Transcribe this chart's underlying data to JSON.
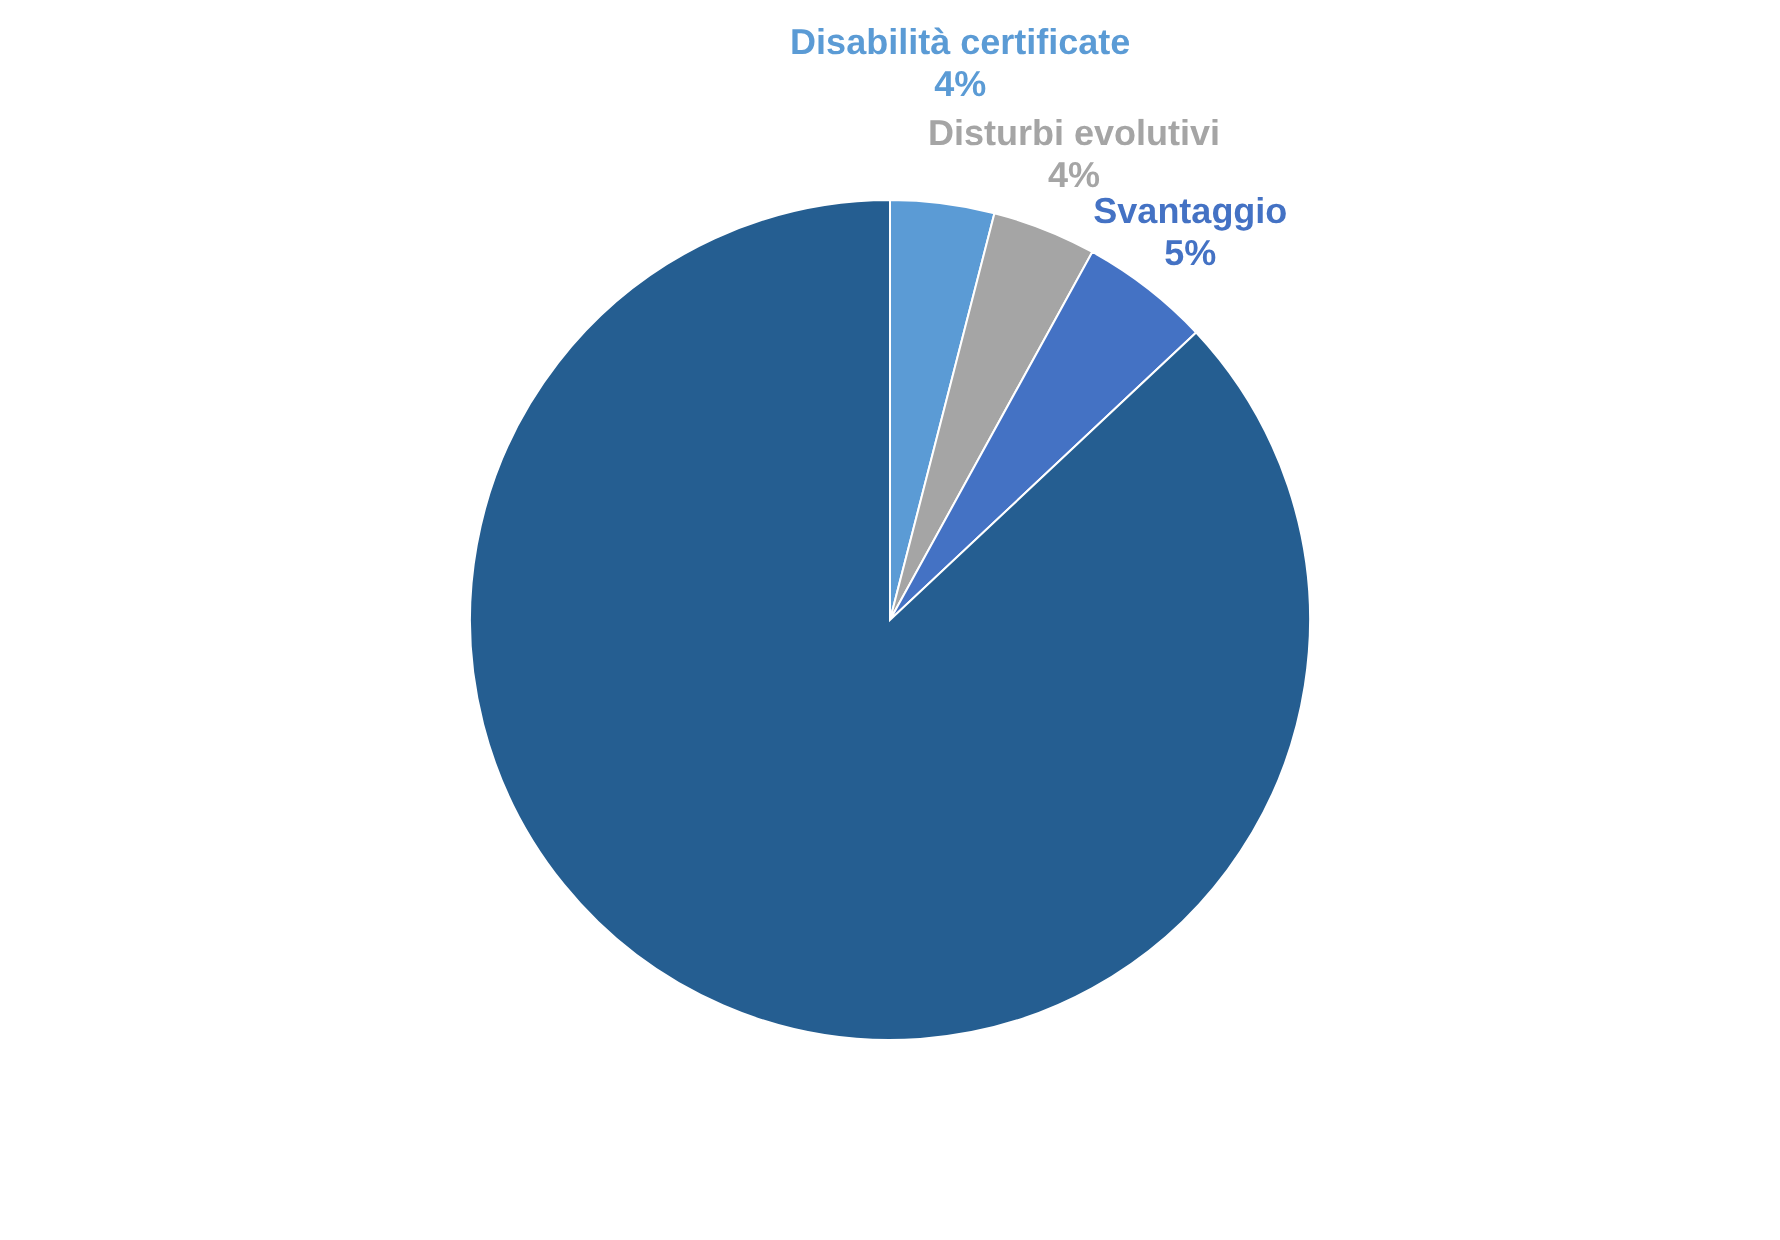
{
  "chart_data": {
    "type": "pie",
    "categories": [
      "Disabilità certificate",
      "Disturbi evolutivi",
      "Svantaggio",
      null
    ],
    "values": [
      4,
      4,
      5,
      87
    ],
    "value_labels": [
      "4%",
      "4%",
      "5%",
      null
    ],
    "colors": [
      "#5b9bd5",
      "#a5a5a5",
      "#4472c4",
      "#255e91"
    ]
  }
}
